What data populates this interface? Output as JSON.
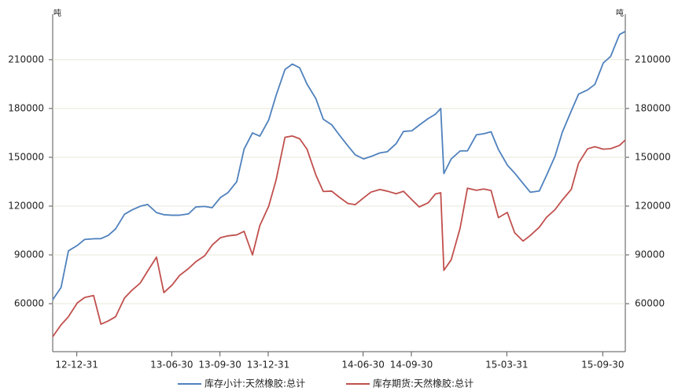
{
  "chart_data": {
    "type": "line",
    "ylabel": "吨",
    "y2label": "吨",
    "x": [
      "12-11-15",
      "12-12-01",
      "12-12-15",
      "13-01-01",
      "13-01-15",
      "13-02-01",
      "13-02-15",
      "13-03-01",
      "13-03-15",
      "13-04-01",
      "13-04-15",
      "13-05-01",
      "13-05-15",
      "13-06-01",
      "13-06-15",
      "13-07-01",
      "13-07-15",
      "13-08-01",
      "13-08-15",
      "13-09-01",
      "13-09-15",
      "13-10-01",
      "13-10-15",
      "13-11-01",
      "13-11-15",
      "13-12-01",
      "13-12-15",
      "14-01-01",
      "14-01-15",
      "14-02-01",
      "14-02-15",
      "14-03-01",
      "14-03-15",
      "14-04-01",
      "14-04-15",
      "14-05-01",
      "14-05-15",
      "14-06-01",
      "14-06-15",
      "14-07-01",
      "14-07-15",
      "14-08-01",
      "14-08-15",
      "14-09-01",
      "14-09-15",
      "14-10-01",
      "14-10-15",
      "14-11-01",
      "14-11-15",
      "14-11-25",
      "14-12-01",
      "14-12-15",
      "15-01-01",
      "15-01-15",
      "15-02-01",
      "15-02-15",
      "15-03-01",
      "15-03-15",
      "15-04-01",
      "15-04-15",
      "15-05-01",
      "15-05-15",
      "15-06-01",
      "15-06-15",
      "15-07-01",
      "15-07-15",
      "15-08-01",
      "15-08-15",
      "15-09-01",
      "15-09-15",
      "15-10-01",
      "15-10-15",
      "15-11-01",
      "15-11-12"
    ],
    "series": [
      {
        "name": "库存小计:天然橡胶:总计",
        "color": "#4f81bd",
        "values": [
          62400,
          70000,
          92500,
          95800,
          99500,
          99900,
          100000,
          102000,
          106000,
          115000,
          117600,
          119900,
          121000,
          116000,
          114700,
          114400,
          114400,
          115200,
          119500,
          119800,
          119000,
          125300,
          128200,
          135000,
          155000,
          165000,
          163000,
          173000,
          188000,
          204000,
          207300,
          205000,
          195000,
          186000,
          173400,
          170000,
          164000,
          157000,
          151500,
          149000,
          150500,
          152700,
          153400,
          158400,
          165900,
          166300,
          169800,
          173800,
          176500,
          180000,
          140000,
          149000,
          153900,
          154000,
          163800,
          164500,
          165700,
          154800,
          145200,
          140300,
          133900,
          128500,
          129300,
          139000,
          150700,
          165500,
          178500,
          188900,
          191400,
          194800,
          208000,
          212000,
          225500,
          227400
        ]
      },
      {
        "name": "库存期货:天然橡胶:总计",
        "color": "#c0504d",
        "axis": "y2",
        "values": [
          39700,
          47000,
          52000,
          60500,
          63800,
          65000,
          47400,
          49400,
          52000,
          63500,
          68200,
          72700,
          80000,
          88600,
          66800,
          71600,
          77400,
          81600,
          85800,
          89500,
          96000,
          100600,
          101700,
          102300,
          104500,
          90000,
          108000,
          120000,
          136000,
          162300,
          163100,
          161400,
          155000,
          139000,
          129000,
          129200,
          125600,
          121600,
          120900,
          125100,
          128600,
          130200,
          129200,
          127600,
          129100,
          123900,
          119500,
          122000,
          127500,
          128200,
          80500,
          87000,
          106500,
          131000,
          129700,
          130500,
          129600,
          112900,
          116100,
          103600,
          98500,
          102000,
          107000,
          113200,
          117800,
          123800,
          130300,
          146500,
          155200,
          156500,
          155000,
          155300,
          157300,
          160600
        ]
      }
    ],
    "xlim": [
      "12-11-15",
      "15-11-12"
    ],
    "xticks": [
      "12-12-31",
      "13-06-30",
      "13-09-30",
      "13-12-31",
      "14-06-30",
      "14-09-30",
      "15-03-31",
      "15-09-30"
    ],
    "ylim": [
      30500,
      238000
    ],
    "yticks": [
      60000,
      90000,
      120000,
      150000,
      180000,
      210000
    ],
    "y2lim": [
      30500,
      238000
    ],
    "y2ticks": [
      60000,
      90000,
      120000,
      150000,
      180000,
      210000
    ],
    "grid": true,
    "legend": "bottom"
  }
}
